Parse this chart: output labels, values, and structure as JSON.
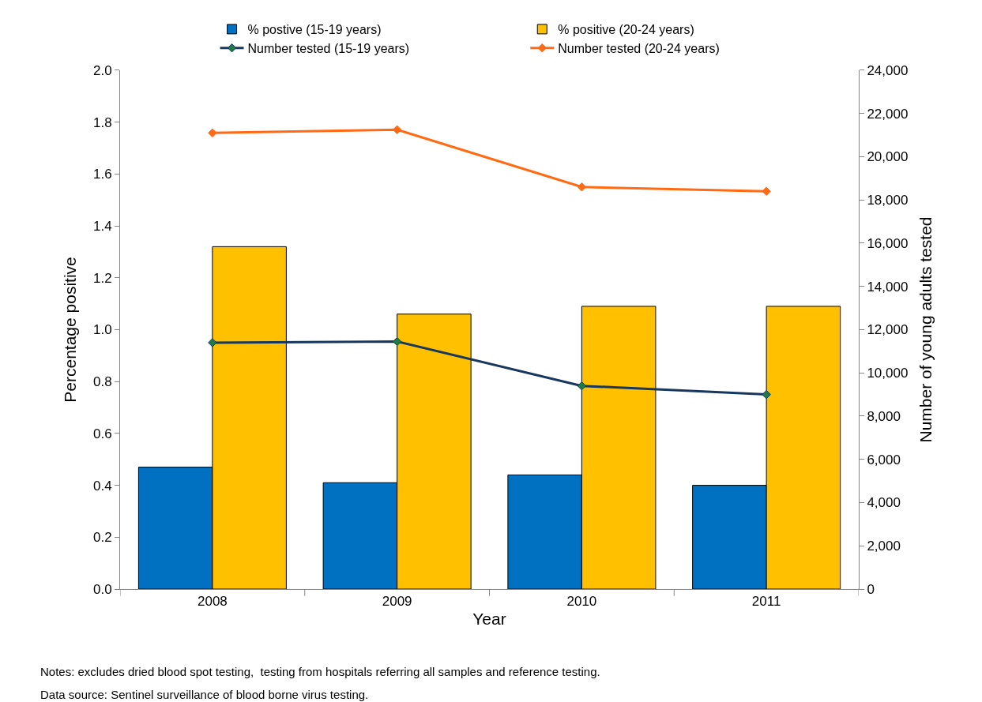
{
  "chart_data": {
    "type": "bar",
    "categories": [
      "2008",
      "2009",
      "2010",
      "2011"
    ],
    "xlabel": "Year",
    "ylabel": "Percentage positive",
    "y2label": "Number of young adults tested",
    "series": [
      {
        "name": "% postive (15-19 years)",
        "color": "#0070c0",
        "values": [
          0.47,
          0.41,
          0.44,
          0.4
        ]
      },
      {
        "name": "% positive (20-24 years)",
        "color": "#ffc000",
        "values": [
          1.32,
          1.06,
          1.09,
          1.09
        ]
      },
      {
        "name": "Number tested (15-19 years)",
        "type": "line",
        "axis": "y2",
        "color": "#17375e",
        "values": [
          11400,
          11450,
          9400,
          9000
        ]
      },
      {
        "name": "Number tested (20-24 years)",
        "type": "line",
        "axis": "y2",
        "color": "#ff6a13",
        "values": [
          21100,
          21250,
          18600,
          18400
        ]
      }
    ],
    "ylim": [
      0,
      2.0
    ],
    "yticks": [
      {
        "value": 0,
        "label": "0.0"
      },
      {
        "value": 0.2,
        "label": "0.2"
      },
      {
        "value": 0.4,
        "label": "0.4"
      },
      {
        "value": 0.6,
        "label": "0.6"
      },
      {
        "value": 0.8,
        "label": "0.8"
      },
      {
        "value": 1.0,
        "label": "1.0"
      },
      {
        "value": 1.2,
        "label": "1.2"
      },
      {
        "value": 1.4,
        "label": "1.4"
      },
      {
        "value": 1.6,
        "label": "1.6"
      },
      {
        "value": 1.8,
        "label": "1.8"
      },
      {
        "value": 2.0,
        "label": "2.0"
      }
    ],
    "y2lim": [
      0,
      24000
    ],
    "y2ticks": [
      0,
      {
        "value": 2000,
        "label": "2,000"
      },
      {
        "value": 4000,
        "label": "4,000"
      },
      {
        "value": 6000,
        "label": "6,000"
      },
      {
        "value": 8000,
        "label": "8,000"
      },
      {
        "value": 10000,
        "label": "10,000"
      },
      {
        "value": 12000,
        "label": "12,000"
      },
      {
        "value": 14000,
        "label": "14,000"
      },
      {
        "value": 16000,
        "label": "16,000"
      },
      {
        "value": 18000,
        "label": "18,000"
      },
      {
        "value": 20000,
        "label": "20,000"
      },
      {
        "value": 22000,
        "label": "22,000"
      },
      {
        "value": 24000,
        "label": "24,000"
      }
    ],
    "marker": "diamond",
    "legend": "top",
    "annotations": [
      "Notes: excludes dried blood spot testing,  testing from hospitals referring all samples and reference testing.",
      "Data source: Sentinel surveillance of blood borne virus testing."
    ]
  }
}
